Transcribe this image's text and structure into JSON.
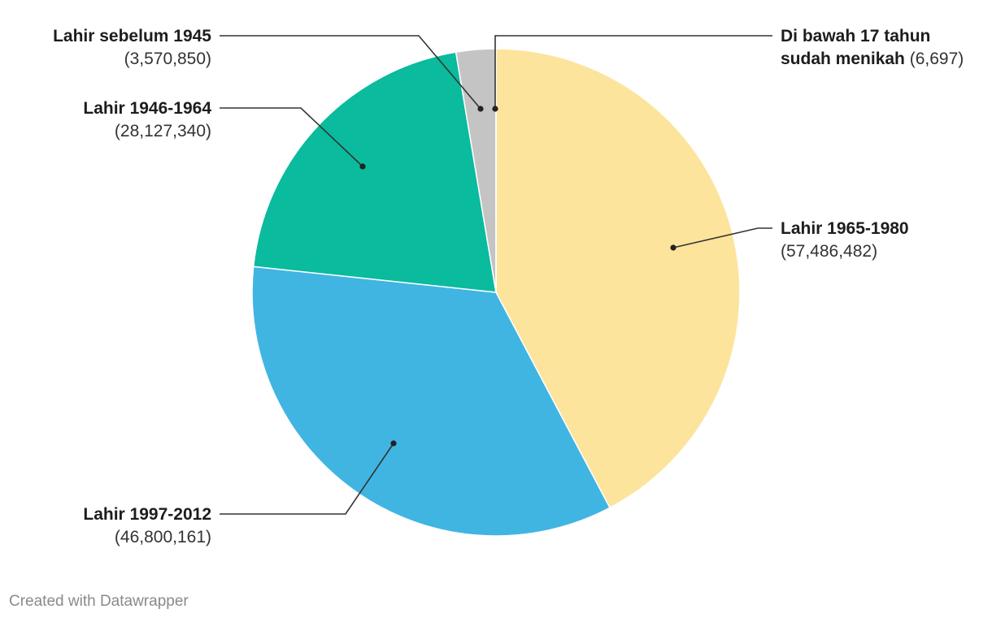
{
  "chart_data": {
    "type": "pie",
    "start_angle_deg": 0,
    "direction": "clockwise",
    "slice_border_color": "#ffffff",
    "slices": [
      {
        "id": "gen-x",
        "name": "Lahir 1965-1980",
        "name_lines": [
          "Lahir 1965-1980"
        ],
        "value": 57486482,
        "value_text": "(57,486,482)",
        "color": "#fde49c"
      },
      {
        "id": "gen-z",
        "name": "Lahir 1997-2012",
        "name_lines": [
          "Lahir 1997-2012"
        ],
        "value": 46800161,
        "value_text": "(46,800,161)",
        "color": "#41b5e2"
      },
      {
        "id": "boomer",
        "name": "Lahir 1946-1964",
        "name_lines": [
          "Lahir 1946-1964"
        ],
        "value": 28127340,
        "value_text": "(28,127,340)",
        "color": "#0abb9d"
      },
      {
        "id": "pre-1945",
        "name": "Lahir sebelum 1945",
        "name_lines": [
          "Lahir sebelum 1945"
        ],
        "value": 3570850,
        "value_text": "(3,570,850)",
        "color": "#c4c4c4"
      },
      {
        "id": "under-17",
        "name": "Di bawah 17 tahun sudah menikah",
        "name_lines": [
          "Di bawah 17 tahun",
          "sudah menikah"
        ],
        "value": 6697,
        "value_text": "(6,697)",
        "color": "#fde49c"
      }
    ]
  },
  "footer": {
    "credit": "Created with Datawrapper"
  }
}
